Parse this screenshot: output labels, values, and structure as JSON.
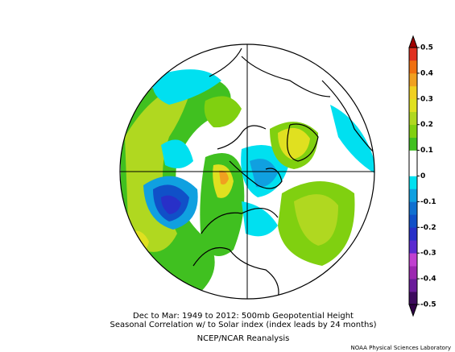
{
  "map": {
    "title_lines": [
      "Dec to Mar: 1949 to 2012: 500mb Geopotential Height",
      "Seasonal Correlation w/  to  Solar index (index leads by 24 months)"
    ],
    "source": "NCEP/NCAR Reanalysis",
    "credit": "NOAA Physical Sciences Laboratory",
    "colorbar": {
      "ticks": [
        0.5,
        0.4,
        0.3,
        0.2,
        0.1,
        0,
        -0.1,
        -0.2,
        -0.3,
        -0.4,
        -0.5
      ],
      "colors": [
        "#3d0a5e",
        "#6a1b9a",
        "#9c27b0",
        "#c040d0",
        "#5a2ad0",
        "#2830c8",
        "#1050c8",
        "#1070d0",
        "#10a0e0",
        "#00e0f0",
        "#ffffff",
        "#ffffff",
        "#40c020",
        "#80d010",
        "#b0d820",
        "#e0e020",
        "#f0d020",
        "#f0a020",
        "#f07010",
        "#e03020"
      ],
      "over_color": "#a00000",
      "under_color": "#300048"
    }
  }
}
